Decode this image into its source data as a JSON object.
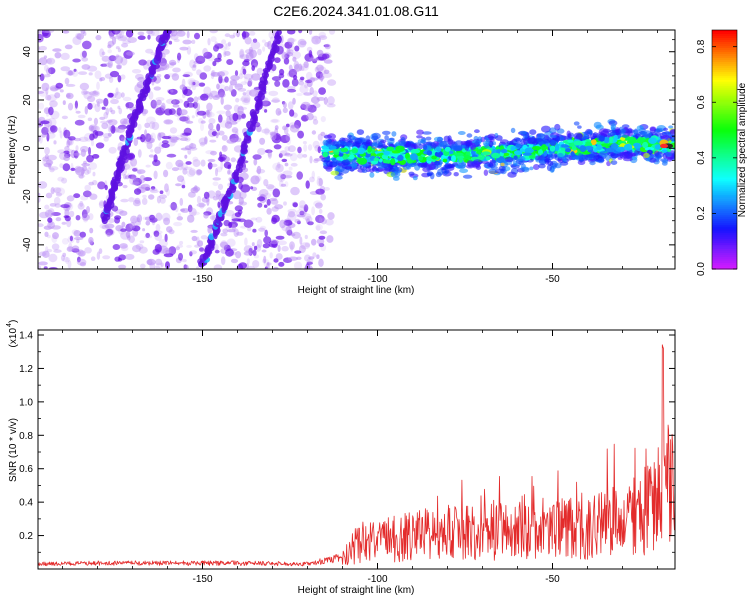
{
  "title": "C2E6.2024.341.01.08.G11",
  "chart_data": [
    {
      "type": "heatmap",
      "xlabel": "Height of straight line (km)",
      "ylabel": "Frequency (Hz)",
      "xlim": [
        -197,
        -15
      ],
      "ylim": [
        -50,
        49
      ],
      "x_ticks": [
        -150,
        -100,
        -50
      ],
      "y_ticks": [
        -40,
        -20,
        0,
        20,
        40
      ],
      "x_tick_labels": [
        "-150",
        "-100",
        "-50"
      ],
      "y_tick_labels": [
        "-40",
        "-20",
        "0",
        "20",
        "40"
      ],
      "colorbar": {
        "label": "Normalized spectral amplitude",
        "range": [
          0,
          0.86
        ],
        "ticks": [
          0,
          0.2,
          0.4,
          0.6,
          0.8
        ],
        "tick_labels": [
          "0.0",
          "0.2",
          "0.4",
          "0.6",
          "0.8"
        ],
        "colormap": "rainbow"
      },
      "features": [
        {
          "name": "diagonal-streak-1",
          "x": [
            -178,
            -170,
            -160
          ],
          "y": [
            -30,
            10,
            49
          ],
          "amplitude": 0.2
        },
        {
          "name": "diagonal-streak-2",
          "x": [
            -150,
            -140,
            -128
          ],
          "y": [
            -48,
            -10,
            49
          ],
          "amplitude": 0.2
        },
        {
          "name": "signal-band",
          "x_start": -115,
          "x_end": -15,
          "center_hz": [
            -2,
            -3,
            -3,
            -2,
            0,
            2,
            1
          ],
          "band_width_hz": 8,
          "peak_amplitude": 0.86,
          "peak_x": -17
        }
      ]
    },
    {
      "type": "line",
      "xlabel": "Height of straight line (km)",
      "ylabel": "SNR (10 * v/v)",
      "y_scale_label": "(x10",
      "y_scale_exp": "4",
      "xlim": [
        -197,
        -15
      ],
      "ylim": [
        0,
        14300
      ],
      "x_ticks": [
        -150,
        -100,
        -50
      ],
      "y_ticks": [
        2000,
        4000,
        6000,
        8000,
        10000,
        12000,
        14000
      ],
      "x_tick_labels": [
        "-150",
        "-100",
        "-50"
      ],
      "y_tick_labels": [
        "0.2",
        "0.4",
        "0.6",
        "0.8",
        "1.0",
        "1.2",
        "1.4"
      ],
      "color": "#e32b2b",
      "series": [
        {
          "x": [
            -197,
            -180,
            -160,
            -140,
            -120,
            -110,
            -106,
            -100,
            -90,
            -80,
            -70,
            -60,
            -50,
            -40,
            -30,
            -25,
            -20,
            -18,
            -17,
            -15
          ],
          "y": [
            300,
            350,
            350,
            350,
            300,
            700,
            1600,
            1800,
            2200,
            2400,
            2500,
            2500,
            2600,
            2900,
            3200,
            3600,
            4500,
            6000,
            5500,
            5000
          ],
          "peak": [
            300,
            600,
            600,
            600,
            500,
            1400,
            3300,
            3000,
            4200,
            5500,
            4800,
            4800,
            5300,
            5400,
            6300,
            8000,
            14300,
            13000,
            9000,
            8500
          ]
        }
      ]
    }
  ]
}
